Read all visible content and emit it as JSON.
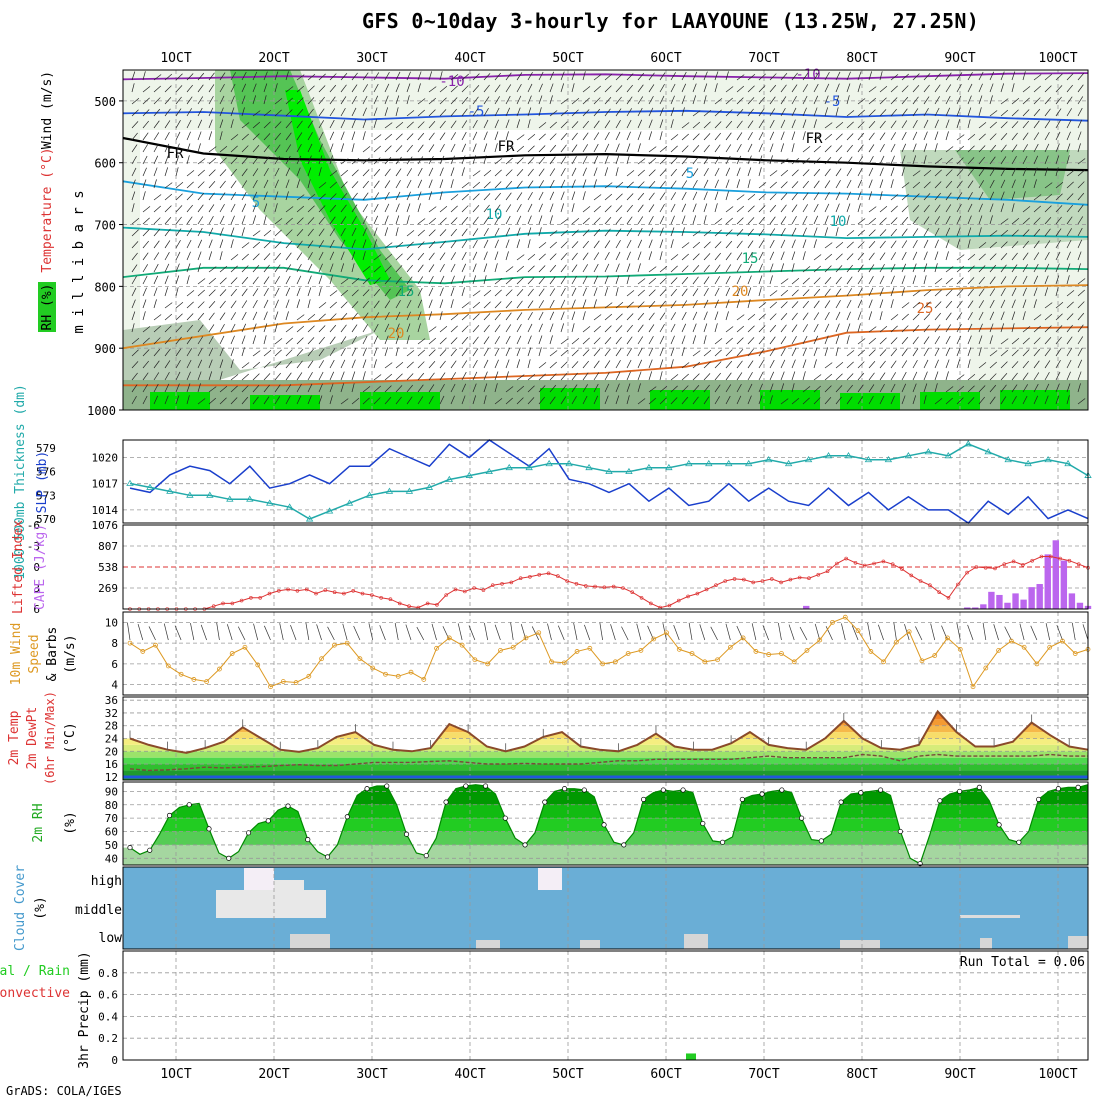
{
  "title": "GFS 0~10day 3-hourly for LAAYOUNE (13.25W, 27.25N)",
  "footer": "GrADS: COLA/IGES",
  "chart_data": [
    {
      "type": "cross-section",
      "ylabel": "m i l l i b a r s",
      "legend_labels": [
        "RH (%)",
        "Temperature (°C)",
        "Wind (m/s)"
      ],
      "legend_colors": [
        "#22cc22",
        "#dd3333",
        "#000000"
      ],
      "x_ticks": [
        "1OCT",
        "2OCT",
        "3OCT",
        "4OCT",
        "5OCT",
        "6OCT",
        "7OCT",
        "8OCT",
        "9OCT",
        "10OCT"
      ],
      "y_ticks": [
        500,
        600,
        700,
        800,
        900,
        1000
      ],
      "ylim": [
        1000,
        450
      ],
      "isotherm_labels": [
        {
          "text": "-10",
          "value": -10,
          "color": "#8822aa"
        },
        {
          "text": "-5",
          "value": -5,
          "color": "#2255dd"
        },
        {
          "text": "FR",
          "value": 0,
          "color": "#000000"
        },
        {
          "text": "5",
          "value": 5,
          "color": "#1aa0dd"
        },
        {
          "text": "10",
          "value": 10,
          "color": "#11aaaa"
        },
        {
          "text": "15",
          "value": 15,
          "color": "#11aa77"
        },
        {
          "text": "20",
          "value": 20,
          "color": "#dd8822"
        },
        {
          "text": "25",
          "value": 25,
          "color": "#dd6622"
        }
      ],
      "isotherms": [
        {
          "value": -10,
          "color": "#8822aa",
          "pressure_mb": [
            465,
            463,
            460,
            462,
            464,
            458,
            457,
            460,
            462,
            464,
            460,
            456,
            455
          ]
        },
        {
          "value": -5,
          "color": "#2255dd",
          "pressure_mb": [
            520,
            518,
            524,
            530,
            525,
            522,
            518,
            516,
            520,
            526,
            522,
            528,
            532
          ]
        },
        {
          "value": 0,
          "color": "#000000",
          "pressure_mb": [
            560,
            585,
            594,
            596,
            594,
            588,
            586,
            590,
            596,
            600,
            606,
            610,
            612
          ]
        },
        {
          "value": 5,
          "color": "#1aa0dd",
          "pressure_mb": [
            630,
            650,
            655,
            660,
            648,
            640,
            638,
            642,
            648,
            650,
            655,
            660,
            668
          ]
        },
        {
          "value": 10,
          "color": "#11aaaa",
          "pressure_mb": [
            705,
            712,
            730,
            740,
            728,
            715,
            710,
            712,
            716,
            722,
            720,
            718,
            720
          ]
        },
        {
          "value": 15,
          "color": "#11aa77",
          "pressure_mb": [
            785,
            770,
            770,
            790,
            795,
            785,
            784,
            780,
            776,
            772,
            770,
            770,
            772
          ]
        },
        {
          "value": 20,
          "color": "#dd8822",
          "pressure_mb": [
            900,
            880,
            860,
            850,
            845,
            838,
            834,
            830,
            822,
            815,
            806,
            800,
            798
          ]
        },
        {
          "value": 25,
          "color": "#dd6622",
          "pressure_mb": [
            960,
            960,
            960,
            955,
            950,
            945,
            940,
            930,
            905,
            875,
            870,
            868,
            866
          ]
        }
      ],
      "rh_green_columns": [
        {
          "from": "1.8OCT",
          "to": "2.6OCT"
        },
        {
          "from": "2.3OCT",
          "to": "3.1OCT"
        }
      ]
    },
    {
      "type": "line",
      "ylabel_left": "1000-500mb Thickness (dm)",
      "ylabel_right": "SLP (mb)",
      "left_ticks": [
        570,
        573,
        576,
        579
      ],
      "right_ticks": [
        1014,
        1017,
        1020
      ],
      "series": [
        {
          "name": "SLP (mb)",
          "color": "#1a3fcc",
          "axis": "right",
          "values": [
            1016.5,
            1016.0,
            1018.0,
            1019.0,
            1018.5,
            1017.0,
            1019.0,
            1016.5,
            1017.0,
            1018.0,
            1017.0,
            1019.0,
            1019.0,
            1021.0,
            1020.0,
            1019.0,
            1021.5,
            1020.0,
            1022.0,
            1020.5,
            1019.0,
            1021.0,
            1017.5,
            1017.0,
            1016.0,
            1017.0,
            1015.0,
            1016.5,
            1014.5,
            1015.0,
            1017.0,
            1015.0,
            1016.5,
            1015.0,
            1014.5,
            1016.5,
            1014.5,
            1016.0,
            1014.0,
            1015.5,
            1014.0,
            1014.0,
            1012.5,
            1015.0,
            1013.5,
            1015.5,
            1013.0,
            1014.0,
            1013.0
          ]
        },
        {
          "name": "1000-500mb Thickness (dm)",
          "color": "#22aaaa",
          "axis": "left",
          "values": [
            574.5,
            574.0,
            573.5,
            573.0,
            573.0,
            572.5,
            572.5,
            572.0,
            571.5,
            570.0,
            571.0,
            572.0,
            573.0,
            573.5,
            573.5,
            574.0,
            575.0,
            575.5,
            576.0,
            576.5,
            576.5,
            577.0,
            577.0,
            576.5,
            576.0,
            576.0,
            576.5,
            576.5,
            577.0,
            577.0,
            577.0,
            577.0,
            577.5,
            577.0,
            577.5,
            578.0,
            578.0,
            577.5,
            577.5,
            578.0,
            578.5,
            578.0,
            579.5,
            578.5,
            577.5,
            577.0,
            577.5,
            577.0,
            575.5
          ]
        }
      ]
    },
    {
      "type": "bar",
      "ylabel_left": "Lifted Index",
      "ylabel_right": "CAPE (J/kg)",
      "left_ticks": [
        "-6",
        "-3",
        "0",
        "3",
        "6"
      ],
      "right_ticks": [
        "1076",
        "807",
        "538",
        "269"
      ],
      "series": [
        {
          "name": "Lifted Index",
          "color": "#dd3333",
          "values": [
            6,
            6,
            6,
            6,
            6,
            6,
            6,
            6,
            6,
            5.6,
            5.2,
            5.2,
            4.8,
            4.4,
            4.4,
            3.8,
            3.4,
            3.2,
            3.4,
            3.2,
            3.8,
            3.3,
            3.6,
            3.8,
            3.4,
            3.8,
            4.0,
            4.4,
            4.6,
            5.2,
            5.6,
            5.8,
            5.2,
            5.4,
            4.0,
            3.2,
            3.5,
            3.0,
            3.3,
            2.6,
            2.4,
            2.2,
            1.6,
            1.4,
            1.1,
            0.9,
            1.3,
            2.0,
            2.4,
            2.7,
            2.8,
            2.9,
            2.8,
            3.0,
            3.6,
            4.4,
            5.2,
            5.8,
            5.5,
            4.8,
            4.2,
            3.8,
            3.2,
            2.6,
            2.0,
            1.7,
            1.8,
            2.2,
            2.0,
            1.7,
            2.2,
            1.8,
            1.5,
            1.6,
            1.1,
            0.6,
            -0.5,
            -1.2,
            -0.6,
            -0.2,
            -0.5,
            -0.8,
            -0.4,
            0.3,
            1.2,
            2.0,
            2.6,
            3.6,
            4.4,
            2.5,
            0.8,
            0.0,
            0.1,
            0.2,
            -0.4,
            -0.8,
            -0.3,
            -0.9,
            -1.5,
            -1.5,
            -1.2,
            -0.9,
            -0.4,
            0.1
          ]
        },
        {
          "name": "CAPE (J/kg)",
          "color": "#bb66ee",
          "values": [
            0,
            0,
            0,
            0,
            0,
            0,
            0,
            0,
            0,
            0,
            0,
            0,
            0,
            0,
            0,
            0,
            0,
            0,
            0,
            0,
            0,
            0,
            0,
            0,
            0,
            0,
            0,
            0,
            0,
            0,
            0,
            0,
            0,
            0,
            0,
            0,
            0,
            0,
            0,
            0,
            0,
            0,
            0,
            0,
            0,
            0,
            0,
            0,
            0,
            0,
            0,
            0,
            0,
            0,
            0,
            0,
            0,
            0,
            0,
            0,
            0,
            0,
            0,
            0,
            0,
            0,
            0,
            0,
            0,
            0,
            0,
            0,
            0,
            0,
            0,
            0,
            0,
            0,
            0,
            0,
            0,
            0,
            0,
            0,
            40,
            0,
            0,
            0,
            0,
            0,
            0,
            0,
            0,
            0,
            0,
            0,
            0,
            0,
            0,
            0,
            0,
            0,
            0,
            0,
            20,
            20,
            60,
            220,
            180,
            80,
            200,
            120,
            280,
            320,
            700,
            880,
            620,
            200,
            80,
            40
          ]
        }
      ]
    },
    {
      "type": "line",
      "ylabel": "10m Wind Speed & Barbs (m/s)",
      "y_ticks": [
        4,
        6,
        8,
        10
      ],
      "ylim": [
        3,
        11
      ],
      "series": [
        {
          "name": "10m Wind Speed",
          "color": "#dd9922",
          "values": [
            8,
            7.2,
            7.8,
            5.8,
            5.0,
            4.5,
            4.3,
            5.5,
            7.0,
            7.6,
            5.9,
            3.8,
            4.3,
            4.2,
            4.8,
            6.5,
            7.8,
            8.0,
            6.5,
            5.6,
            5.0,
            4.8,
            5.2,
            4.5,
            7.5,
            8.5,
            7.8,
            6.4,
            6.0,
            7.3,
            7.6,
            8.5,
            9.0,
            6.2,
            6.1,
            7.2,
            7.5,
            6.0,
            6.2,
            7.0,
            7.3,
            8.4,
            9.0,
            7.4,
            7.0,
            6.2,
            6.4,
            7.6,
            8.5,
            7.2,
            6.9,
            7.0,
            6.2,
            7.3,
            8.3,
            10.0,
            10.5,
            9.2,
            7.2,
            6.2,
            8.1,
            9.1,
            6.3,
            6.8,
            8.5,
            7.4,
            3.8,
            5.6,
            7.3,
            8.2,
            7.6,
            6.0,
            7.6,
            8.2,
            7.0,
            7.4
          ]
        }
      ]
    },
    {
      "type": "area",
      "ylabel": "2m Temp 2m DewPt (6hr Min/Max) (°C)",
      "y_ticks": [
        12,
        16,
        20,
        24,
        28,
        32,
        36
      ],
      "ylim": [
        11,
        37
      ],
      "series": [
        {
          "name": "2m Temp",
          "color": "#8a4a2a",
          "values": [
            24,
            22,
            20.5,
            19.5,
            21,
            23,
            27.5,
            24,
            20.5,
            19.8,
            21,
            24.5,
            26,
            22,
            20.5,
            20,
            21,
            28.5,
            26,
            21.5,
            20,
            21.5,
            24.5,
            26,
            21.5,
            20.5,
            20,
            22,
            25.5,
            21.5,
            20.5,
            20.5,
            22.5,
            26,
            22,
            21,
            20.5,
            24,
            29.5,
            24,
            21,
            20.5,
            22,
            32.5,
            26,
            21.5,
            21.5,
            23,
            29,
            25,
            21.5,
            20.5
          ]
        },
        {
          "name": "2m DewPt",
          "color": "#7a4a3a",
          "values": [
            14.5,
            14,
            14.2,
            14.5,
            15,
            14.8,
            15,
            15.2,
            15.5,
            15.8,
            15.5,
            15.5,
            16,
            16.5,
            16.5,
            16.5,
            16.8,
            17,
            16.5,
            16,
            16,
            16.2,
            16,
            16,
            16,
            16.5,
            17,
            17,
            17.5,
            17.5,
            17.5,
            17.5,
            17.5,
            18,
            18.5,
            18,
            18,
            18,
            18,
            19,
            18.5,
            17,
            18.5,
            19,
            18.5,
            18.5,
            18.5,
            18.5,
            18.5,
            19,
            18.5,
            18.5
          ]
        }
      ]
    },
    {
      "type": "area",
      "ylabel": "2m RH (%)",
      "y_ticks": [
        40,
        50,
        60,
        70,
        80,
        90
      ],
      "ylim": [
        35,
        97
      ],
      "series": [
        {
          "name": "2m RH",
          "color": "#008800",
          "values": [
            48,
            43,
            46,
            58,
            72,
            78,
            80,
            81,
            62,
            44,
            40,
            45,
            59,
            66,
            68,
            76,
            79,
            75,
            54,
            45,
            41,
            50,
            71,
            87,
            92,
            94,
            94,
            80,
            58,
            44,
            42,
            55,
            82,
            92,
            94,
            95,
            94,
            88,
            70,
            55,
            50,
            59,
            82,
            90,
            92,
            92,
            91,
            86,
            65,
            52,
            50,
            59,
            84,
            89,
            91,
            90,
            91,
            89,
            66,
            53,
            52,
            56,
            84,
            87,
            88,
            90,
            91,
            89,
            70,
            54,
            53,
            58,
            82,
            88,
            89,
            90,
            91,
            87,
            60,
            40,
            36,
            58,
            83,
            88,
            90,
            91,
            93,
            83,
            65,
            54,
            52,
            60,
            84,
            90,
            92,
            93,
            93,
            95
          ]
        }
      ]
    },
    {
      "type": "heatmap",
      "ylabel": "Cloud Cover (%)",
      "y_ticks": [
        "high",
        "middle",
        "low"
      ]
    },
    {
      "type": "bar",
      "ylabel_left": "3hr Precip (mm)",
      "legend_labels": [
        "Total / Rain",
        "Convective"
      ],
      "legend_colors": [
        "#22cc22",
        "#dd3333"
      ],
      "y_ticks": [
        "0",
        "0.2",
        "0.4",
        "0.6",
        "0.8"
      ],
      "ylim": [
        0,
        1
      ],
      "annotation": "Run Total = 0.06",
      "series": [
        {
          "name": "Total / Rain",
          "color": "#22cc22",
          "bars": [
            {
              "x": "6.25OCT",
              "value": 0.06
            }
          ]
        }
      ]
    }
  ]
}
